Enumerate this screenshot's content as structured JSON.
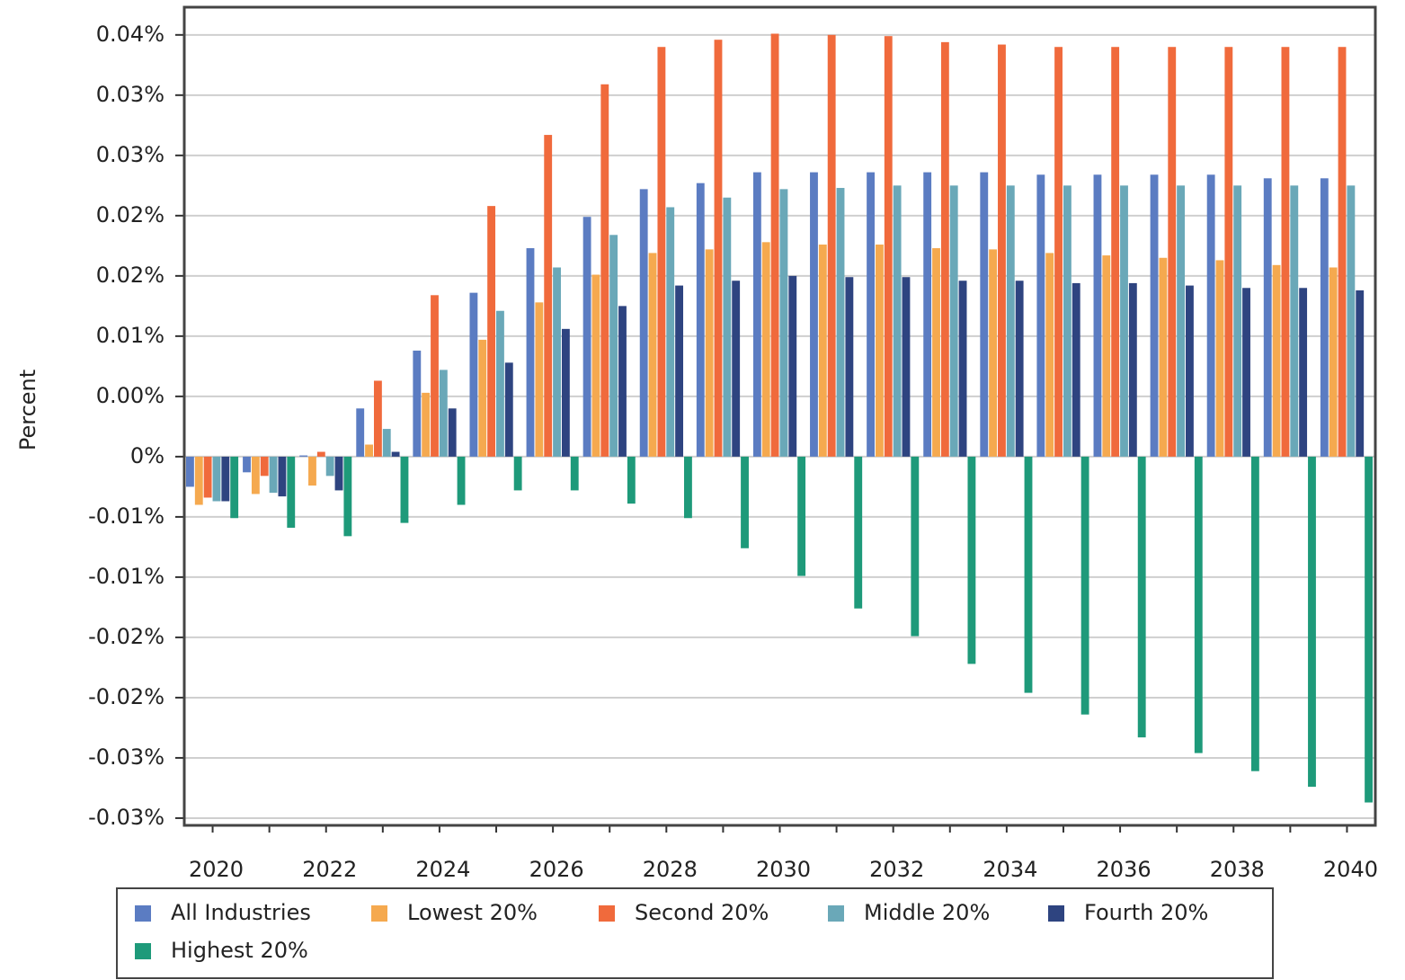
{
  "chart_data": {
    "type": "bar",
    "y_label": "Percent",
    "categories": [
      "2020",
      null,
      "2022",
      null,
      "2024",
      null,
      "2026",
      null,
      "2028",
      null,
      "2030",
      null,
      "2032",
      null,
      "2034",
      null,
      "2036",
      null,
      "2038",
      null,
      "2040"
    ],
    "series": [
      {
        "name": "All Industries",
        "color": "#5b7cc2",
        "values": [
          -0.0025,
          -0.0013,
          0.0001,
          0.004,
          0.0088,
          0.0136,
          0.0173,
          0.0199,
          0.0222,
          0.0227,
          0.0236,
          0.0236,
          0.0236,
          0.0236,
          0.0236,
          0.0234,
          0.0234,
          0.0234,
          0.0234,
          0.0231,
          0.0231
        ]
      },
      {
        "name": "Lowest 20%",
        "color": "#f5a94f",
        "values": [
          -0.004,
          -0.0031,
          -0.0024,
          0.001,
          0.0053,
          0.0097,
          0.0128,
          0.0151,
          0.0169,
          0.0172,
          0.0178,
          0.0176,
          0.0176,
          0.0173,
          0.0172,
          0.0169,
          0.0167,
          0.0165,
          0.0163,
          0.0159,
          0.0157
        ]
      },
      {
        "name": "Second 20%",
        "color": "#f06a3c",
        "values": [
          -0.0034,
          -0.0016,
          0.0004,
          0.0063,
          0.0134,
          0.0208,
          0.0267,
          0.0309,
          0.034,
          0.0346,
          0.0351,
          0.035,
          0.0349,
          0.0344,
          0.0342,
          0.034,
          0.034,
          0.034,
          0.034,
          0.034,
          0.034
        ]
      },
      {
        "name": "Middle 20%",
        "color": "#6aa8b8",
        "values": [
          -0.0037,
          -0.003,
          -0.0016,
          0.0023,
          0.0072,
          0.0121,
          0.0157,
          0.0184,
          0.0207,
          0.0215,
          0.0222,
          0.0223,
          0.0225,
          0.0225,
          0.0225,
          0.0225,
          0.0225,
          0.0225,
          0.0225,
          0.0225,
          0.0225
        ]
      },
      {
        "name": "Fourth 20%",
        "color": "#2e4480",
        "values": [
          -0.0037,
          -0.0033,
          -0.0028,
          0.0004,
          0.004,
          0.0078,
          0.0106,
          0.0125,
          0.0142,
          0.0146,
          0.015,
          0.0149,
          0.0149,
          0.0146,
          0.0146,
          0.0144,
          0.0144,
          0.0142,
          0.014,
          0.014,
          0.0138
        ]
      },
      {
        "name": "Highest 20%",
        "color": "#1e9a7a",
        "values": [
          -0.0051,
          -0.0059,
          -0.0066,
          -0.0055,
          -0.004,
          -0.0028,
          -0.0028,
          -0.0039,
          -0.0051,
          -0.0076,
          -0.0099,
          -0.0126,
          -0.0149,
          -0.0172,
          -0.0196,
          -0.0214,
          -0.0233,
          -0.0246,
          -0.0261,
          -0.0274,
          -0.0287
        ]
      }
    ],
    "ylim": [
      -0.0306,
      0.0373
    ],
    "yticks": [
      {
        "value": 0.035,
        "label": "0.04%"
      },
      {
        "value": 0.03,
        "label": "0.03%"
      },
      {
        "value": 0.025,
        "label": "0.03%"
      },
      {
        "value": 0.02,
        "label": "0.02%"
      },
      {
        "value": 0.015,
        "label": "0.02%"
      },
      {
        "value": 0.01,
        "label": "0.01%"
      },
      {
        "value": 0.005,
        "label": "0.00%"
      },
      {
        "value": 0,
        "label": "0%"
      },
      {
        "value": -0.005,
        "label": "-0.01%"
      },
      {
        "value": -0.01,
        "label": "-0.01%"
      },
      {
        "value": -0.015,
        "label": "-0.02%"
      },
      {
        "value": -0.02,
        "label": "-0.02%"
      },
      {
        "value": -0.025,
        "label": "-0.03%"
      },
      {
        "value": -0.03,
        "label": "-0.03%"
      }
    ],
    "grid": true
  }
}
